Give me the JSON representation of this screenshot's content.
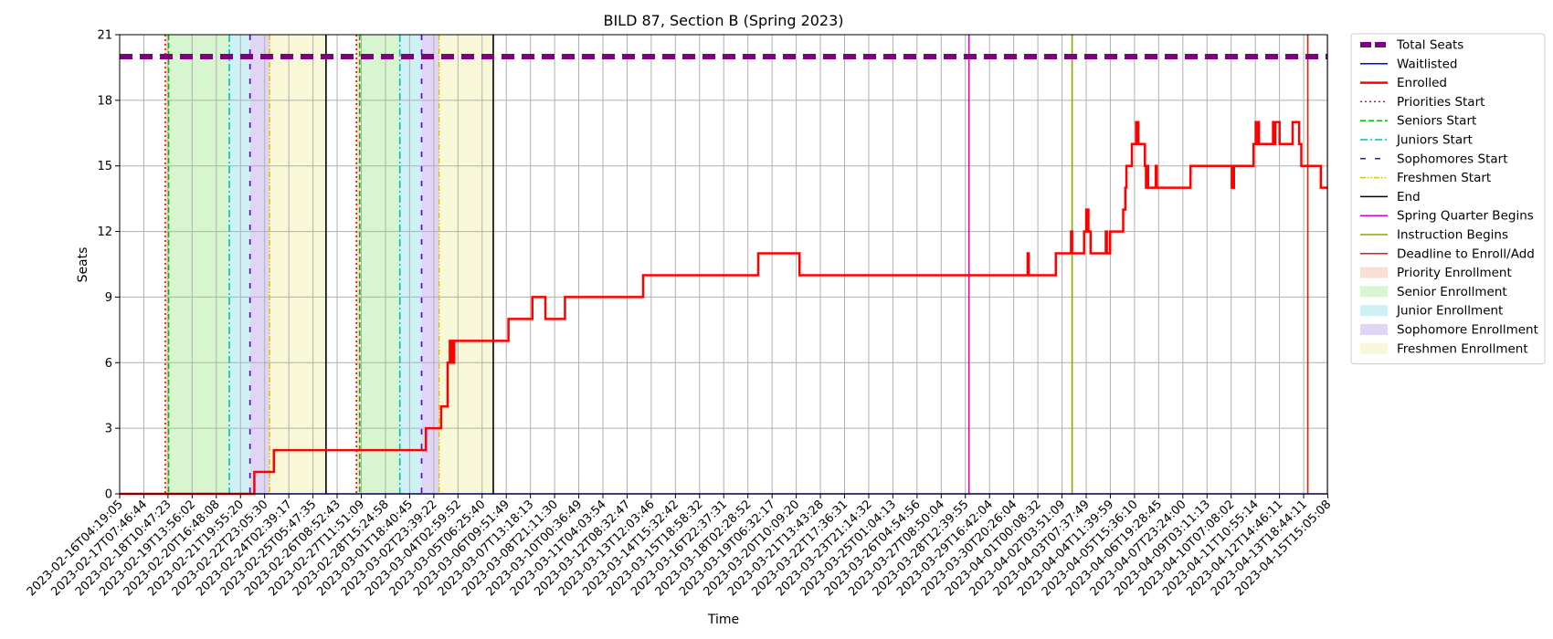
{
  "chart_data": {
    "type": "line",
    "title": "BILD 87, Section B (Spring 2023)",
    "xlabel": "Time",
    "ylabel": "Seats",
    "ylim": [
      0,
      21
    ],
    "yticks": [
      0,
      3,
      6,
      9,
      12,
      15,
      18,
      21
    ],
    "grid": true,
    "legend_position": "outside-right",
    "x_tick_labels": [
      "2023-02-16T04:19:05",
      "2023-02-17T07:46:44",
      "2023-02-18T10:47:23",
      "2023-02-19T13:56:02",
      "2023-02-20T16:48:08",
      "2023-02-21T19:55:20",
      "2023-02-22T23:05:30",
      "2023-02-24T02:39:17",
      "2023-02-25T05:47:35",
      "2023-02-26T08:52:43",
      "2023-02-27T11:51:09",
      "2023-02-28T15:24:58",
      "2023-03-01T18:40:45",
      "2023-03-02T23:39:22",
      "2023-03-04T02:59:52",
      "2023-03-05T06:25:40",
      "2023-03-06T09:51:49",
      "2023-03-07T13:18:13",
      "2023-03-08T21:11:30",
      "2023-03-10T00:36:49",
      "2023-03-11T04:03:54",
      "2023-03-12T08:32:47",
      "2023-03-13T12:03:46",
      "2023-03-14T15:32:42",
      "2023-03-15T18:58:32",
      "2023-03-16T22:37:31",
      "2023-03-18T02:28:52",
      "2023-03-19T06:32:17",
      "2023-03-20T10:09:20",
      "2023-03-21T13:43:28",
      "2023-03-22T17:36:31",
      "2023-03-23T21:14:32",
      "2023-03-25T01:04:13",
      "2023-03-26T04:54:56",
      "2023-03-27T08:50:04",
      "2023-03-28T12:39:55",
      "2023-03-29T16:42:04",
      "2023-03-30T20:26:04",
      "2023-04-01T00:08:32",
      "2023-04-02T03:51:09",
      "2023-04-03T07:37:49",
      "2023-04-04T11:39:59",
      "2023-04-05T15:36:10",
      "2023-04-06T19:28:45",
      "2023-04-07T23:24:00",
      "2023-04-09T03:11:13",
      "2023-04-10T07:08:02",
      "2023-04-11T10:55:14",
      "2023-04-12T14:46:11",
      "2023-04-13T18:44:11",
      "2023-04-15T15:05:08"
    ],
    "x_range": [
      0,
      55.6
    ],
    "series": [
      {
        "name": "Total Seats",
        "color": "#800080",
        "style": "dashed-thick",
        "values": [
          [
            0,
            20
          ],
          [
            55.6,
            20
          ]
        ]
      },
      {
        "name": "Waitlisted",
        "color": "#0000ff",
        "style": "solid",
        "values": [
          [
            0,
            0
          ],
          [
            55.6,
            0
          ]
        ]
      },
      {
        "name": "Enrolled",
        "color": "#ff0000",
        "style": "solid-thick",
        "values": [
          [
            0,
            0
          ],
          [
            6.2,
            0
          ],
          [
            6.2,
            1
          ],
          [
            7.1,
            1
          ],
          [
            7.1,
            2
          ],
          [
            14.1,
            2
          ],
          [
            14.1,
            3
          ],
          [
            14.8,
            3
          ],
          [
            14.8,
            4
          ],
          [
            15.1,
            4
          ],
          [
            15.1,
            6
          ],
          [
            15.2,
            6
          ],
          [
            15.2,
            7
          ],
          [
            15.3,
            7
          ],
          [
            15.3,
            6
          ],
          [
            15.4,
            6
          ],
          [
            15.4,
            7
          ],
          [
            17.9,
            7
          ],
          [
            17.9,
            8
          ],
          [
            19.0,
            8
          ],
          [
            19.0,
            9
          ],
          [
            19.6,
            9
          ],
          [
            19.6,
            8
          ],
          [
            20.5,
            8
          ],
          [
            20.5,
            9
          ],
          [
            24.1,
            9
          ],
          [
            24.1,
            10
          ],
          [
            29.4,
            10
          ],
          [
            29.4,
            11
          ],
          [
            31.3,
            11
          ],
          [
            31.3,
            10
          ],
          [
            41.8,
            10
          ],
          [
            41.8,
            11
          ],
          [
            41.85,
            11
          ],
          [
            41.85,
            10
          ],
          [
            43.1,
            10
          ],
          [
            43.1,
            11
          ],
          [
            43.8,
            11
          ],
          [
            43.8,
            12
          ],
          [
            43.85,
            12
          ],
          [
            43.85,
            11
          ],
          [
            44.4,
            11
          ],
          [
            44.4,
            12
          ],
          [
            44.5,
            12
          ],
          [
            44.5,
            13
          ],
          [
            44.6,
            13
          ],
          [
            44.6,
            12
          ],
          [
            44.7,
            12
          ],
          [
            44.7,
            11
          ],
          [
            45.4,
            11
          ],
          [
            45.4,
            12
          ],
          [
            45.45,
            12
          ],
          [
            45.45,
            11
          ],
          [
            45.6,
            11
          ],
          [
            45.6,
            12
          ],
          [
            46.2,
            12
          ],
          [
            46.2,
            13
          ],
          [
            46.3,
            13
          ],
          [
            46.3,
            14
          ],
          [
            46.35,
            14
          ],
          [
            46.35,
            15
          ],
          [
            46.6,
            15
          ],
          [
            46.6,
            16
          ],
          [
            46.8,
            16
          ],
          [
            46.8,
            17
          ],
          [
            46.9,
            17
          ],
          [
            46.9,
            16
          ],
          [
            47.2,
            16
          ],
          [
            47.2,
            15
          ],
          [
            47.25,
            15
          ],
          [
            47.25,
            14
          ],
          [
            47.3,
            14
          ],
          [
            47.3,
            15
          ],
          [
            47.35,
            15
          ],
          [
            47.35,
            14
          ],
          [
            47.7,
            14
          ],
          [
            47.7,
            15
          ],
          [
            47.75,
            15
          ],
          [
            47.75,
            14
          ],
          [
            49.3,
            14
          ],
          [
            49.3,
            15
          ],
          [
            51.2,
            15
          ],
          [
            51.2,
            14
          ],
          [
            51.3,
            14
          ],
          [
            51.3,
            15
          ],
          [
            52.2,
            15
          ],
          [
            52.2,
            16
          ],
          [
            52.3,
            16
          ],
          [
            52.3,
            17
          ],
          [
            52.35,
            17
          ],
          [
            52.35,
            16
          ],
          [
            52.4,
            16
          ],
          [
            52.4,
            17
          ],
          [
            52.45,
            17
          ],
          [
            52.45,
            16
          ],
          [
            53.1,
            16
          ],
          [
            53.1,
            17
          ],
          [
            53.15,
            17
          ],
          [
            53.15,
            16
          ],
          [
            53.2,
            16
          ],
          [
            53.2,
            17
          ],
          [
            53.4,
            17
          ],
          [
            53.4,
            16
          ],
          [
            54.0,
            16
          ],
          [
            54.0,
            17
          ],
          [
            54.3,
            17
          ],
          [
            54.3,
            16
          ],
          [
            54.4,
            16
          ],
          [
            54.4,
            15
          ],
          [
            55.3,
            15
          ],
          [
            55.3,
            14
          ],
          [
            55.6,
            14
          ]
        ]
      }
    ],
    "vertical_lines": [
      {
        "name": "Priorities Start",
        "x": 2.1,
        "color": "#ff0000",
        "style": "dotted"
      },
      {
        "name": "Seniors Start",
        "x": 2.25,
        "color": "#00bb00",
        "style": "dashed"
      },
      {
        "name": "Juniors Start",
        "x": 5.05,
        "color": "#00bfbf",
        "style": "dashdot"
      },
      {
        "name": "Sophomores Start",
        "x": 6.0,
        "color": "#5500dd",
        "style": "loosedash"
      },
      {
        "name": "Freshmen Start",
        "x": 6.9,
        "color": "#e0c000",
        "style": "dashdotdot"
      },
      {
        "name": "End",
        "x": 9.5,
        "color": "#000000",
        "style": "solid"
      },
      {
        "name": "Priorities Start",
        "x": 10.9,
        "color": "#ff0000",
        "style": "dotted"
      },
      {
        "name": "Seniors Start",
        "x": 11.05,
        "color": "#00bb00",
        "style": "dashed"
      },
      {
        "name": "Juniors Start",
        "x": 12.9,
        "color": "#00bfbf",
        "style": "dashdot"
      },
      {
        "name": "Sophomores Start",
        "x": 13.9,
        "color": "#5500dd",
        "style": "loosedash"
      },
      {
        "name": "Freshmen Start",
        "x": 14.7,
        "color": "#e0c000",
        "style": "dashdotdot"
      },
      {
        "name": "End",
        "x": 17.2,
        "color": "#000000",
        "style": "solid"
      },
      {
        "name": "Spring Quarter Begins",
        "x": 39.1,
        "color": "#dd00cc",
        "style": "solid"
      },
      {
        "name": "Instruction Begins",
        "x": 43.85,
        "color": "#88aa00",
        "style": "solid"
      },
      {
        "name": "Deadline to Enroll/Add",
        "x": 54.7,
        "color": "#dd2200",
        "style": "solid"
      }
    ],
    "shaded_regions": [
      {
        "name": "Priority Enrollment",
        "from": 2.1,
        "to": 2.25,
        "color": "#f4c2b0"
      },
      {
        "name": "Senior Enrollment",
        "from": 2.25,
        "to": 5.05,
        "color": "#b7eda8"
      },
      {
        "name": "Junior Enrollment",
        "from": 5.05,
        "to": 6.0,
        "color": "#a6e5ef"
      },
      {
        "name": "Sophomore Enrollment",
        "from": 6.0,
        "to": 6.9,
        "color": "#c9b2ef"
      },
      {
        "name": "Freshmen Enrollment",
        "from": 6.9,
        "to": 9.5,
        "color": "#f2f2b8"
      },
      {
        "name": "Priority Enrollment",
        "from": 10.9,
        "to": 11.05,
        "color": "#f4c2b0"
      },
      {
        "name": "Senior Enrollment",
        "from": 11.05,
        "to": 12.9,
        "color": "#b7eda8"
      },
      {
        "name": "Junior Enrollment",
        "from": 12.9,
        "to": 13.9,
        "color": "#a6e5ef"
      },
      {
        "name": "Sophomore Enrollment",
        "from": 13.9,
        "to": 14.7,
        "color": "#c9b2ef"
      },
      {
        "name": "Freshmen Enrollment",
        "from": 14.7,
        "to": 17.2,
        "color": "#f2f2b8"
      }
    ],
    "legend": [
      {
        "label": "Total Seats",
        "kind": "line",
        "color": "#800080",
        "style": "dashed-thick"
      },
      {
        "label": "Waitlisted",
        "kind": "line",
        "color": "#0000ff",
        "style": "solid"
      },
      {
        "label": "Enrolled",
        "kind": "line",
        "color": "#ff0000",
        "style": "solid-thick"
      },
      {
        "label": "Priorities Start",
        "kind": "line",
        "color": "#ff0000",
        "style": "dotted"
      },
      {
        "label": "Seniors Start",
        "kind": "line",
        "color": "#00bb00",
        "style": "dashed"
      },
      {
        "label": "Juniors Start",
        "kind": "line",
        "color": "#00bfbf",
        "style": "dashdot"
      },
      {
        "label": "Sophomores Start",
        "kind": "line",
        "color": "#5500dd",
        "style": "loosedash"
      },
      {
        "label": "Freshmen Start",
        "kind": "line",
        "color": "#e0c000",
        "style": "dashdotdot"
      },
      {
        "label": "End",
        "kind": "line",
        "color": "#000000",
        "style": "solid"
      },
      {
        "label": "Spring Quarter Begins",
        "kind": "line",
        "color": "#dd00cc",
        "style": "solid"
      },
      {
        "label": "Instruction Begins",
        "kind": "line",
        "color": "#88aa00",
        "style": "solid"
      },
      {
        "label": "Deadline to Enroll/Add",
        "kind": "line",
        "color": "#dd2200",
        "style": "solid"
      },
      {
        "label": "Priority Enrollment",
        "kind": "patch",
        "color": "#f4c2b0"
      },
      {
        "label": "Senior Enrollment",
        "kind": "patch",
        "color": "#b7eda8"
      },
      {
        "label": "Junior Enrollment",
        "kind": "patch",
        "color": "#a6e5ef"
      },
      {
        "label": "Sophomore Enrollment",
        "kind": "patch",
        "color": "#c9b2ef"
      },
      {
        "label": "Freshmen Enrollment",
        "kind": "patch",
        "color": "#f2f2b8"
      }
    ]
  }
}
